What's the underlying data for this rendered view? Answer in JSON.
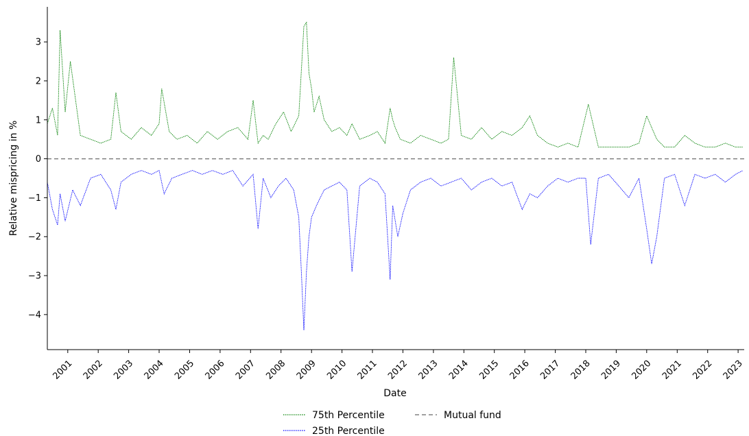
{
  "chart_data": {
    "type": "line",
    "title": "",
    "xlabel": "Date",
    "ylabel": "Relative mispricing in %",
    "xlim": [
      "2000-05-01",
      "2023-03-15"
    ],
    "ylim": [
      -4.9,
      3.9
    ],
    "x_ticks": [
      "2001",
      "2002",
      "2003",
      "2004",
      "2005",
      "2006",
      "2007",
      "2008",
      "2009",
      "2010",
      "2011",
      "2012",
      "2013",
      "2014",
      "2015",
      "2016",
      "2017",
      "2018",
      "2019",
      "2020",
      "2021",
      "2022",
      "2023"
    ],
    "y_ticks": [
      3,
      2,
      1,
      0,
      -1,
      -2,
      -3,
      -4
    ],
    "y_tick_labels": [
      "3",
      "2",
      "1",
      "0",
      "−1",
      "−2",
      "−3",
      "−4"
    ],
    "grid": false,
    "legend_position": "bottom-center",
    "series": [
      {
        "name": "75th Percentile",
        "color": "#008000",
        "style": "dotted",
        "x": [
          "2000-05",
          "2000-07",
          "2000-09",
          "2000-10",
          "2000-12",
          "2001-02",
          "2001-06",
          "2001-10",
          "2002-02",
          "2002-06",
          "2002-08",
          "2002-10",
          "2003-02",
          "2003-06",
          "2003-10",
          "2004-01",
          "2004-02",
          "2004-05",
          "2004-08",
          "2004-12",
          "2005-04",
          "2005-08",
          "2005-12",
          "2006-04",
          "2006-08",
          "2006-12",
          "2007-02",
          "2007-04",
          "2007-06",
          "2007-08",
          "2007-11",
          "2008-02",
          "2008-05",
          "2008-08",
          "2008-10",
          "2008-11",
          "2008-12",
          "2009-01",
          "2009-02",
          "2009-04",
          "2009-06",
          "2009-09",
          "2009-12",
          "2010-03",
          "2010-05",
          "2010-08",
          "2010-12",
          "2011-03",
          "2011-06",
          "2011-08",
          "2011-09",
          "2011-10",
          "2011-12",
          "2012-04",
          "2012-08",
          "2012-12",
          "2013-04",
          "2013-07",
          "2013-09",
          "2013-12",
          "2014-04",
          "2014-08",
          "2014-12",
          "2015-04",
          "2015-08",
          "2015-12",
          "2016-03",
          "2016-06",
          "2016-10",
          "2017-02",
          "2017-06",
          "2017-10",
          "2018-02",
          "2018-06",
          "2018-10",
          "2019-02",
          "2019-06",
          "2019-10",
          "2020-01",
          "2020-03",
          "2020-05",
          "2020-08",
          "2020-12",
          "2021-04",
          "2021-08",
          "2021-12",
          "2022-04",
          "2022-08",
          "2022-12",
          "2023-03"
        ],
        "y": [
          0.9,
          1.3,
          0.6,
          3.3,
          1.2,
          2.5,
          0.6,
          0.5,
          0.4,
          0.5,
          1.7,
          0.7,
          0.5,
          0.8,
          0.6,
          0.9,
          1.8,
          0.7,
          0.5,
          0.6,
          0.4,
          0.7,
          0.5,
          0.7,
          0.8,
          0.5,
          1.5,
          0.4,
          0.6,
          0.5,
          0.9,
          1.2,
          0.7,
          1.1,
          3.4,
          3.5,
          2.2,
          1.8,
          1.2,
          1.6,
          1.0,
          0.7,
          0.8,
          0.6,
          0.9,
          0.5,
          0.6,
          0.7,
          0.4,
          1.3,
          1.0,
          0.8,
          0.5,
          0.4,
          0.6,
          0.5,
          0.4,
          0.5,
          2.6,
          0.6,
          0.5,
          0.8,
          0.5,
          0.7,
          0.6,
          0.8,
          1.1,
          0.6,
          0.4,
          0.3,
          0.4,
          0.3,
          1.4,
          0.3,
          0.3,
          0.3,
          0.3,
          0.4,
          1.1,
          0.8,
          0.5,
          0.3,
          0.3,
          0.6,
          0.4,
          0.3,
          0.3,
          0.4,
          0.3,
          0.3
        ]
      },
      {
        "name": "25th Percentile",
        "color": "#0000ff",
        "style": "dotted",
        "x": [
          "2000-05",
          "2000-07",
          "2000-09",
          "2000-10",
          "2000-12",
          "2001-03",
          "2001-06",
          "2001-10",
          "2002-02",
          "2002-06",
          "2002-08",
          "2002-10",
          "2003-02",
          "2003-06",
          "2003-10",
          "2004-01",
          "2004-03",
          "2004-06",
          "2004-10",
          "2005-02",
          "2005-06",
          "2005-10",
          "2006-02",
          "2006-06",
          "2006-10",
          "2007-02",
          "2007-04",
          "2007-06",
          "2007-09",
          "2007-12",
          "2008-03",
          "2008-06",
          "2008-08",
          "2008-09",
          "2008-10",
          "2008-11",
          "2008-12",
          "2009-01",
          "2009-03",
          "2009-06",
          "2009-09",
          "2009-12",
          "2010-03",
          "2010-05",
          "2010-08",
          "2010-12",
          "2011-03",
          "2011-06",
          "2011-08",
          "2011-09",
          "2011-11",
          "2012-01",
          "2012-04",
          "2012-08",
          "2012-12",
          "2013-04",
          "2013-08",
          "2013-12",
          "2014-04",
          "2014-08",
          "2014-12",
          "2015-04",
          "2015-08",
          "2015-12",
          "2016-03",
          "2016-06",
          "2016-10",
          "2017-02",
          "2017-06",
          "2017-10",
          "2018-01",
          "2018-03",
          "2018-06",
          "2018-10",
          "2019-02",
          "2019-06",
          "2019-10",
          "2020-01",
          "2020-03",
          "2020-05",
          "2020-08",
          "2020-12",
          "2021-04",
          "2021-08",
          "2021-12",
          "2022-04",
          "2022-08",
          "2022-12",
          "2023-03"
        ],
        "y": [
          -0.6,
          -1.3,
          -1.7,
          -0.9,
          -1.6,
          -0.8,
          -1.2,
          -0.5,
          -0.4,
          -0.8,
          -1.3,
          -0.6,
          -0.4,
          -0.3,
          -0.4,
          -0.3,
          -0.9,
          -0.5,
          -0.4,
          -0.3,
          -0.4,
          -0.3,
          -0.4,
          -0.3,
          -0.7,
          -0.4,
          -1.8,
          -0.5,
          -1.0,
          -0.7,
          -0.5,
          -0.8,
          -1.5,
          -2.9,
          -4.4,
          -2.9,
          -2.0,
          -1.5,
          -1.2,
          -0.8,
          -0.7,
          -0.6,
          -0.8,
          -2.9,
          -0.7,
          -0.5,
          -0.6,
          -0.9,
          -3.1,
          -1.2,
          -2.0,
          -1.4,
          -0.8,
          -0.6,
          -0.5,
          -0.7,
          -0.6,
          -0.5,
          -0.8,
          -0.6,
          -0.5,
          -0.7,
          -0.6,
          -1.3,
          -0.9,
          -1.0,
          -0.7,
          -0.5,
          -0.6,
          -0.5,
          -0.5,
          -2.2,
          -0.5,
          -0.4,
          -0.7,
          -1.0,
          -0.5,
          -1.8,
          -2.7,
          -2.0,
          -0.5,
          -0.4,
          -1.2,
          -0.4,
          -0.5,
          -0.4,
          -0.6,
          -0.4,
          -0.3
        ]
      },
      {
        "name": "Mutual fund",
        "color": "#808080",
        "style": "dashed",
        "x": [
          "2000-05-01",
          "2023-03-15"
        ],
        "y": [
          0,
          0
        ]
      }
    ]
  }
}
